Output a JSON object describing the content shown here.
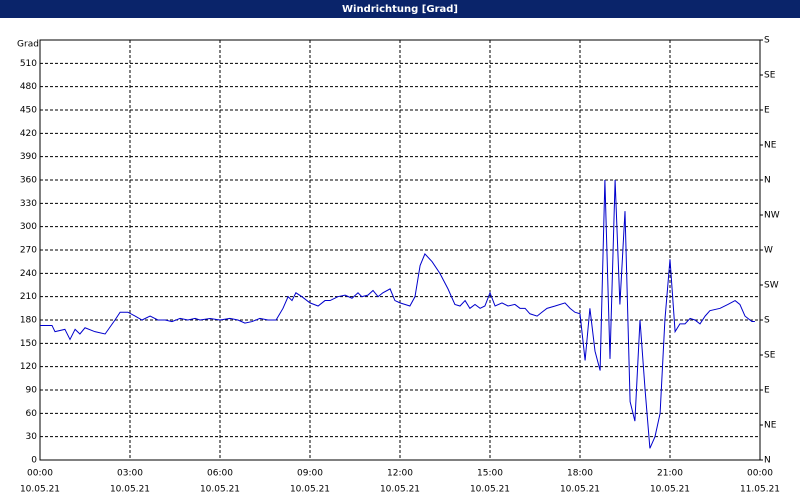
{
  "chart_data": {
    "type": "line",
    "title": "Windrichtung [Grad]",
    "y_label": "Grad",
    "xlim": [
      0,
      24
    ],
    "xticks": [
      {
        "value": 0,
        "label": "00:00"
      },
      {
        "value": 3,
        "label": "03:00"
      },
      {
        "value": 6,
        "label": "06:00"
      },
      {
        "value": 9,
        "label": "09:00"
      },
      {
        "value": 12,
        "label": "12:00"
      },
      {
        "value": 15,
        "label": "15:00"
      },
      {
        "value": 18,
        "label": "18:00"
      },
      {
        "value": 21,
        "label": "21:00"
      },
      {
        "value": 24,
        "label": "00:00"
      }
    ],
    "xtick_dates": [
      "10.05.21",
      "10.05.21",
      "10.05.21",
      "10.05.21",
      "10.05.21",
      "10.05.21",
      "10.05.21",
      "10.05.21",
      "11.05.21"
    ],
    "ylim": [
      0,
      540
    ],
    "yticks": [
      0,
      30,
      60,
      90,
      120,
      150,
      180,
      210,
      240,
      270,
      300,
      330,
      360,
      390,
      420,
      450,
      480,
      510
    ],
    "y2lim": [
      0,
      540
    ],
    "y2ticks": [
      {
        "value": 0,
        "label": "N"
      },
      {
        "value": 45,
        "label": "NE"
      },
      {
        "value": 90,
        "label": "E"
      },
      {
        "value": 135,
        "label": "SE"
      },
      {
        "value": 180,
        "label": "S"
      },
      {
        "value": 225,
        "label": "SW"
      },
      {
        "value": 270,
        "label": "W"
      },
      {
        "value": 315,
        "label": "NW"
      },
      {
        "value": 360,
        "label": "N"
      },
      {
        "value": 405,
        "label": "NE"
      },
      {
        "value": 450,
        "label": "E"
      },
      {
        "value": 495,
        "label": "SE"
      },
      {
        "value": 540,
        "label": "S"
      }
    ],
    "grid": true,
    "x": [
      0,
      0.4,
      0.5,
      0.83,
      1,
      1.17,
      1.33,
      1.5,
      1.83,
      2.17,
      2.5,
      2.67,
      2.93,
      3.17,
      3.4,
      3.67,
      3.93,
      4.17,
      4.4,
      4.67,
      4.93,
      5.17,
      5.33,
      5.67,
      6,
      6.33,
      6.6,
      6.83,
      7.07,
      7.33,
      7.6,
      7.87,
      8.1,
      8.27,
      8.4,
      8.53,
      8.73,
      9,
      9.27,
      9.5,
      9.67,
      9.93,
      10.17,
      10.4,
      10.6,
      10.73,
      10.93,
      11.1,
      11.27,
      11.43,
      11.67,
      11.83,
      12,
      12.33,
      12.5,
      12.67,
      12.83,
      13.07,
      13.33,
      13.6,
      13.83,
      14,
      14.17,
      14.33,
      14.5,
      14.67,
      14.83,
      15,
      15.17,
      15.4,
      15.6,
      15.83,
      16,
      16.17,
      16.33,
      16.57,
      16.73,
      16.9,
      17.17,
      17.5,
      17.67,
      17.83,
      18,
      18.17,
      18.33,
      18.5,
      18.67,
      18.83,
      19,
      19.17,
      19.33,
      19.5,
      19.67,
      19.83,
      20,
      20.17,
      20.33,
      20.5,
      20.67,
      20.83,
      21,
      21.17,
      21.33,
      21.5,
      21.67,
      21.83,
      22,
      22.17,
      22.33,
      22.67,
      22.93,
      23.17,
      23.33,
      23.5,
      23.73,
      23.83
    ],
    "series": [
      {
        "color": "#0000cc",
        "values": [
          173,
          173,
          165,
          168,
          155,
          168,
          162,
          170,
          165,
          162,
          180,
          190,
          190,
          185,
          180,
          185,
          180,
          180,
          178,
          182,
          180,
          182,
          180,
          182,
          180,
          182,
          180,
          176,
          178,
          182,
          180,
          180,
          195,
          210,
          205,
          215,
          210,
          202,
          198,
          205,
          205,
          210,
          212,
          208,
          215,
          210,
          212,
          218,
          210,
          215,
          220,
          205,
          202,
          198,
          210,
          250,
          265,
          255,
          240,
          220,
          200,
          198,
          205,
          195,
          200,
          195,
          198,
          215,
          198,
          202,
          198,
          200,
          195,
          195,
          188,
          185,
          190,
          195,
          198,
          202,
          195,
          190,
          188,
          128,
          195,
          140,
          115,
          360,
          130,
          360,
          200,
          320,
          75,
          50,
          180,
          90,
          15,
          30,
          60,
          180,
          258,
          165,
          175,
          175,
          182,
          180,
          175,
          185,
          192,
          195,
          200,
          205,
          200,
          185,
          178,
          178
        ]
      }
    ]
  }
}
